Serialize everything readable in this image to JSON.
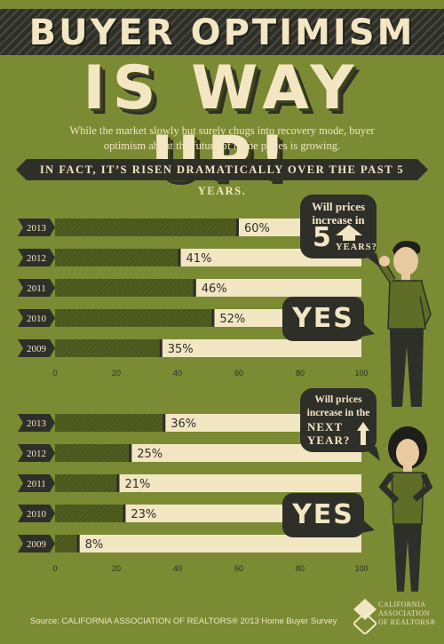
{
  "header": {
    "title_line1": "BUYER OPTIMISM",
    "title_line2": "IS WAY UP!",
    "subtitle_line1": "While the market slowly but surely chugs into recovery mode, buyer",
    "subtitle_line2": "optimism about the future of home prices is growing.",
    "fact": "IN FACT, IT’S RISEN DRAMATICALLY OVER THE PAST 5 YEARS."
  },
  "question_5yr": {
    "line1": "Will prices",
    "line2": "increase in",
    "big": "5",
    "word": "YEARS?"
  },
  "question_next": {
    "line1": "Will prices",
    "line2": "increase in the",
    "word1": "NEXT",
    "word2": "YEAR?"
  },
  "yes_label": "YES",
  "colors": {
    "background": "#7b8b34",
    "dark": "#2f2f29",
    "cream": "#f3e6c3",
    "bar": "#4f5e20"
  },
  "chart_data": [
    {
      "type": "bar",
      "orientation": "horizontal",
      "categories": [
        "2013",
        "2012",
        "2011",
        "2010",
        "2009"
      ],
      "values": [
        60,
        41,
        46,
        52,
        35
      ],
      "value_labels": [
        "60%",
        "41%",
        "46%",
        "52%",
        "35%"
      ],
      "xlim": [
        0,
        100
      ],
      "xticks": [
        "0",
        "20",
        "40",
        "60",
        "80",
        "100"
      ]
    },
    {
      "type": "bar",
      "orientation": "horizontal",
      "categories": [
        "2013",
        "2012",
        "2011",
        "2010",
        "2009"
      ],
      "values": [
        36,
        25,
        21,
        23,
        8
      ],
      "value_labels": [
        "36%",
        "25%",
        "21%",
        "23%",
        "8%"
      ],
      "xlim": [
        0,
        100
      ],
      "xticks": [
        "0",
        "20",
        "40",
        "60",
        "80",
        "100"
      ]
    }
  ],
  "footer": {
    "source": "Source: CALIFORNIA ASSOCIATION OF REALTORS® 2013 Home Buyer Survey",
    "logo_line1": "CALIFORNIA",
    "logo_line2": "ASSOCIATION",
    "logo_line3": "OF REALTORS®"
  }
}
